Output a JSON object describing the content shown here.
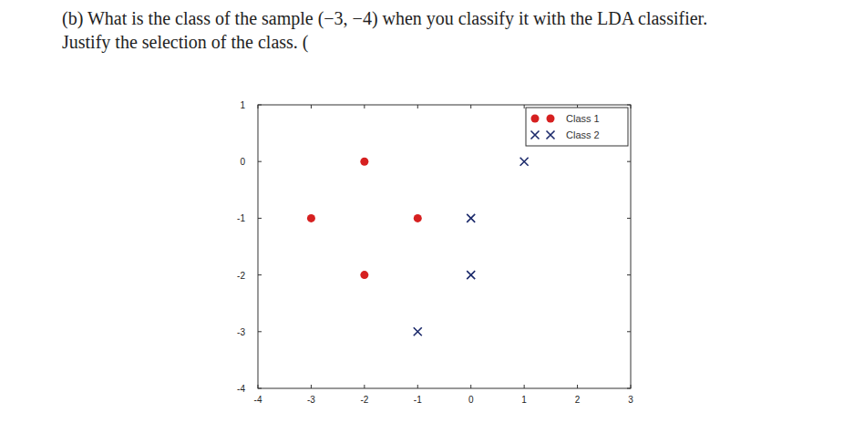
{
  "chart_data": {
    "type": "scatter",
    "title": "(b) What is the class of the sample (−3, −4) when you classify it with the LDA classifier.",
    "subtitle": "Justify the selection of the class. (",
    "xlim": [
      -4,
      3
    ],
    "ylim": [
      -4,
      1
    ],
    "xticks": [
      -4,
      -3,
      -2,
      -1,
      0,
      1,
      2,
      3
    ],
    "yticks": [
      -4,
      -3,
      -2,
      -1,
      0,
      1
    ],
    "grid": false,
    "legend": "upper-right",
    "series": [
      {
        "name": "Class 1",
        "color": "#d62020",
        "marker": "o",
        "x": [
          -2,
          -3,
          -1,
          -2
        ],
        "values": [
          0,
          -1,
          -1,
          -2
        ]
      },
      {
        "name": "Class 2",
        "color": "#1c2a6b",
        "marker": "x",
        "x": [
          1,
          0,
          0,
          -1
        ],
        "values": [
          0,
          -1,
          -2,
          -3
        ]
      }
    ]
  }
}
